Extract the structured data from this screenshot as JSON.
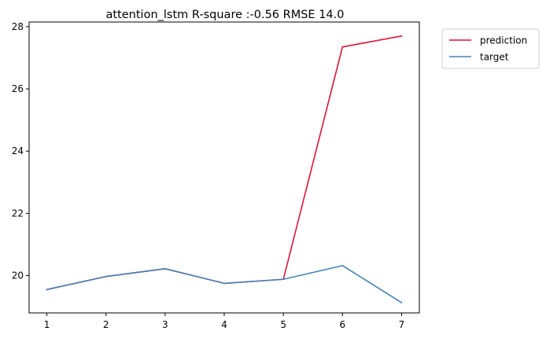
{
  "chart_data": {
    "type": "line",
    "title": "attention_lstm R-square :-0.56 RMSE 14.0",
    "xlabel": "",
    "ylabel": "",
    "x": [
      1,
      2,
      3,
      4,
      5,
      6,
      7
    ],
    "x_ticks": [
      "1",
      "2",
      "3",
      "4",
      "5",
      "6",
      "7"
    ],
    "y_ticks": [
      "20",
      "22",
      "24",
      "26",
      "28"
    ],
    "xlim": [
      0.7,
      7.3
    ],
    "ylim": [
      18.8,
      28.15
    ],
    "grid": false,
    "legend_position": "upper-right-outside",
    "series": [
      {
        "name": "prediction",
        "color": "#dc143c",
        "values": [
          19.55,
          19.97,
          20.22,
          19.75,
          19.88,
          27.35,
          27.7
        ]
      },
      {
        "name": "target",
        "color": "#4682b4",
        "values": [
          19.55,
          19.97,
          20.22,
          19.75,
          19.88,
          20.32,
          19.13
        ]
      }
    ]
  }
}
